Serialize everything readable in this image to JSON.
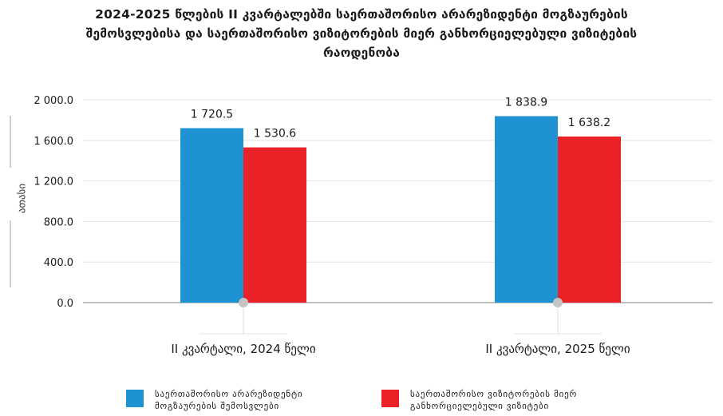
{
  "title_lines": [
    "2024-2025 წლების II კვარტალებში საერთაშორისო არარეზიდენტი მოგზაურების",
    "შემოსვლებისა და საერთაშორისო ვიზიტორების მიერ განხორციელებული ვიზიტების",
    "რაოდენობა"
  ],
  "chart_data": {
    "type": "bar",
    "title": "2024-2025 წლების II კვარტალებში საერთაშორისო არარეზიდენტი მოგზაურების შემოსვლებისა და საერთაშორისო ვიზიტორების მიერ განხორციელებული ვიზიტების რაოდენობა",
    "ylabel": "ათასი",
    "xlabel": "",
    "ylim": [
      0,
      2000
    ],
    "yticks": [
      "0.0",
      "400.0",
      "800.0",
      "1 200.0",
      "1 600.0",
      "2 000.0"
    ],
    "categories": [
      "II კვარტალი, 2024 წელი",
      "II კვარტალი, 2025 წელი"
    ],
    "grid": true,
    "legend_position": "bottom",
    "series": [
      {
        "name": "საერთაშორისო არარეზიდენტი მოგზაურების შემოსვლები",
        "name_lines": [
          "საერთაშორისო არარეზიდენტი",
          "მოგზაურების შემოსვლები"
        ],
        "values": [
          1720.5,
          1838.9
        ],
        "labels": [
          "1 720.5",
          "1 838.9"
        ],
        "color": "#1f92d1"
      },
      {
        "name": "საერთაშორისო ვიზიტორების მიერ განხორციელებული ვიზიტები",
        "name_lines": [
          "საერთაშორისო ვიზიტორების მიერ",
          "განხორციელებული ვიზიტები"
        ],
        "values": [
          1530.6,
          1638.2
        ],
        "labels": [
          "1 530.6",
          "1 638.2"
        ],
        "color": "#ea2228"
      }
    ]
  }
}
